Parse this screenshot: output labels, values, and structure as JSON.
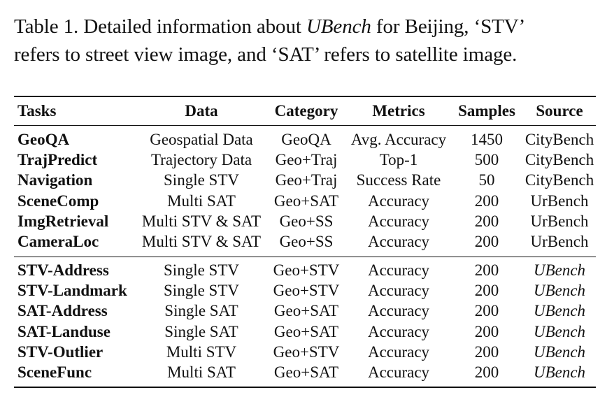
{
  "caption": {
    "line1_pre": "Table 1.  Detailed information about ",
    "line1_ital": "UBench",
    "line1_post": " for Beijing, ‘STV’",
    "line2": "refers to street view image, and ‘SAT’ refers to satellite image."
  },
  "table": {
    "headers": {
      "tasks": "Tasks",
      "data": "Data",
      "category": "Category",
      "metrics": "Metrics",
      "samples": "Samples",
      "source": "Source"
    },
    "group1": [
      {
        "task": "GeoQA",
        "data": "Geospatial Data",
        "category": "GeoQA",
        "metrics": "Avg. Accuracy",
        "samples": "1450",
        "source": "CityBench"
      },
      {
        "task": "TrajPredict",
        "data": "Trajectory Data",
        "category": "Geo+Traj",
        "metrics": "Top-1",
        "samples": "500",
        "source": "CityBench"
      },
      {
        "task": "Navigation",
        "data": "Single STV",
        "category": "Geo+Traj",
        "metrics": "Success Rate",
        "samples": "50",
        "source": "CityBench"
      },
      {
        "task": "SceneComp",
        "data": "Multi SAT",
        "category": "Geo+SAT",
        "metrics": "Accuracy",
        "samples": "200",
        "source": "UrBench"
      },
      {
        "task": "ImgRetrieval",
        "data": "Multi STV & SAT",
        "category": "Geo+SS",
        "metrics": "Accuracy",
        "samples": "200",
        "source": "UrBench"
      },
      {
        "task": "CameraLoc",
        "data": "Multi STV & SAT",
        "category": "Geo+SS",
        "metrics": "Accuracy",
        "samples": "200",
        "source": "UrBench"
      }
    ],
    "group2": [
      {
        "task": "STV-Address",
        "data": "Single STV",
        "category": "Geo+STV",
        "metrics": "Accuracy",
        "samples": "200",
        "source": "UBench"
      },
      {
        "task": "STV-Landmark",
        "data": "Single STV",
        "category": "Geo+STV",
        "metrics": "Accuracy",
        "samples": "200",
        "source": "UBench"
      },
      {
        "task": "SAT-Address",
        "data": "Single SAT",
        "category": "Geo+SAT",
        "metrics": "Accuracy",
        "samples": "200",
        "source": "UBench"
      },
      {
        "task": "SAT-Landuse",
        "data": "Single SAT",
        "category": "Geo+SAT",
        "metrics": "Accuracy",
        "samples": "200",
        "source": "UBench"
      },
      {
        "task": "STV-Outlier",
        "data": "Multi STV",
        "category": "Geo+STV",
        "metrics": "Accuracy",
        "samples": "200",
        "source": "UBench"
      },
      {
        "task": "SceneFunc",
        "data": "Multi SAT",
        "category": "Geo+SAT",
        "metrics": "Accuracy",
        "samples": "200",
        "source": "UBench"
      }
    ]
  }
}
